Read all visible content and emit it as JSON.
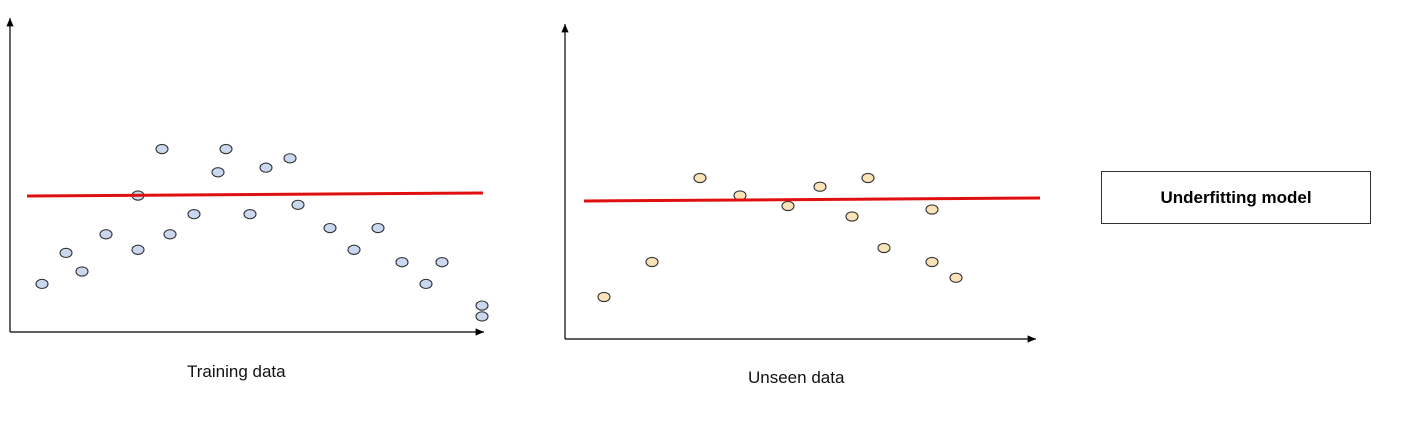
{
  "captions": {
    "training": "Training data",
    "unseen": "Unseen data"
  },
  "model_label": "Underfitting model",
  "colors": {
    "training_point_fill": "#c9d8ee",
    "unseen_point_fill": "#fbe3b8",
    "point_stroke": "#333333",
    "fit_line": "#e01010",
    "axis": "#000000"
  },
  "panels": [
    {
      "name": "training",
      "points_shape": "rising then falling arc",
      "points": [
        [
          1,
          2.2
        ],
        [
          2,
          4.2
        ],
        [
          3,
          3.0
        ],
        [
          4,
          5.4
        ],
        [
          5,
          4.4
        ],
        [
          6,
          7.9
        ],
        [
          7,
          5.4
        ],
        [
          8,
          10.9
        ],
        [
          9,
          6.7
        ],
        [
          10,
          9.4
        ],
        [
          11,
          10.9
        ],
        [
          12,
          6.7
        ],
        [
          13,
          9.7
        ],
        [
          14,
          7.3
        ],
        [
          15,
          10.3
        ],
        [
          16,
          5.8
        ],
        [
          17,
          4.4
        ],
        [
          18,
          5.8
        ],
        [
          19,
          3.6
        ],
        [
          20,
          2.2
        ],
        [
          21,
          3.6
        ],
        [
          22,
          0.8
        ],
        [
          23,
          0.1
        ]
      ],
      "fit_line": "horizontal"
    },
    {
      "name": "unseen",
      "points_shape": "rising then falling arc",
      "points": [
        [
          1,
          1.2
        ],
        [
          2,
          3.2
        ],
        [
          3,
          8.0
        ],
        [
          4,
          7.0
        ],
        [
          5,
          6.4
        ],
        [
          6,
          7.5
        ],
        [
          7,
          5.8
        ],
        [
          8,
          8.0
        ],
        [
          9,
          4.0
        ],
        [
          10,
          6.2
        ],
        [
          11,
          3.2
        ],
        [
          12,
          2.3
        ]
      ],
      "fit_line": "horizontal"
    }
  ]
}
